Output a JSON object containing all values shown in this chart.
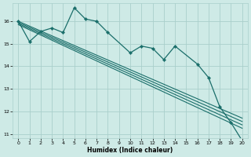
{
  "xlabel": "Humidex (Indice chaleur)",
  "xlim": [
    -0.5,
    20.5
  ],
  "ylim": [
    10.8,
    16.8
  ],
  "yticks": [
    11,
    12,
    13,
    14,
    15,
    16
  ],
  "xticks": [
    0,
    1,
    2,
    3,
    4,
    5,
    6,
    7,
    8,
    9,
    10,
    11,
    12,
    13,
    14,
    15,
    16,
    17,
    18,
    19,
    20
  ],
  "bg_color": "#ceeae6",
  "grid_color": "#aacfcb",
  "line_color": "#1a6e6a",
  "main_line": {
    "x": [
      0,
      1,
      2,
      3,
      4,
      5,
      6,
      7,
      8,
      10,
      11,
      12,
      13,
      14,
      16,
      17,
      18,
      19,
      20
    ],
    "y": [
      16.0,
      15.1,
      15.55,
      15.7,
      15.5,
      16.6,
      16.1,
      16.0,
      15.5,
      14.6,
      14.9,
      14.8,
      14.3,
      14.9,
      14.1,
      13.5,
      12.2,
      11.5,
      10.7
    ]
  },
  "regression_lines": [
    {
      "x": [
        0,
        20
      ],
      "y": [
        16.0,
        11.7
      ]
    },
    {
      "x": [
        0,
        20
      ],
      "y": [
        15.95,
        11.55
      ]
    },
    {
      "x": [
        0,
        20
      ],
      "y": [
        15.9,
        11.4
      ]
    },
    {
      "x": [
        0,
        20
      ],
      "y": [
        15.85,
        11.25
      ]
    }
  ]
}
